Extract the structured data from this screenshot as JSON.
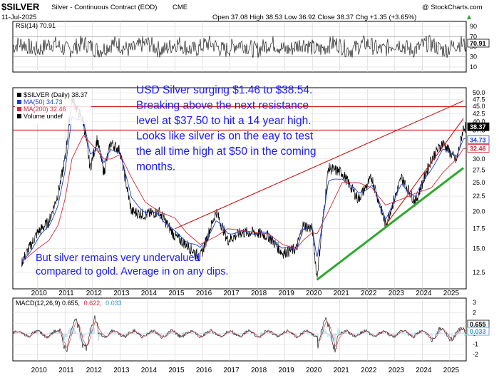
{
  "header": {
    "symbol": "$SILVER",
    "description": "Silver - Continuous Contract (EOD)",
    "exchange": "CME",
    "date": "11-Jul-2025",
    "ohlc": "Open 37.08  High 38.53  Low 36.92  Close 38.37  Chg +1.35 (+3.65%)",
    "ohlc_arrow_color": "#22aa22",
    "watermark": "@ StockCharts.com"
  },
  "colors": {
    "price": "#000000",
    "ma50": "#1a3fd6",
    "ma200": "#d42a3a",
    "resistance": "#cc0000",
    "trend_up": "#2ea82e",
    "annotation": "#1a1aff",
    "rsi": "#000000",
    "macd": "#000000",
    "macd_signal": "#d42a3a",
    "macd_hist": "#3399cc"
  },
  "rsi_panel": {
    "label": "RSI(14) 70.91",
    "badge": "70.91",
    "ticks": [
      "90",
      "70",
      "50",
      "30",
      "10"
    ],
    "tick_values": [
      90,
      70,
      50,
      30,
      10
    ]
  },
  "price_panel": {
    "legend": [
      {
        "text": "$SILVER (Daily) 38.37",
        "color": "#000000"
      },
      {
        "text": "MA(50) 34.73",
        "color": "#1a3fd6"
      },
      {
        "text": "MA(200) 32.46",
        "color": "#d42a3a"
      },
      {
        "text": "Volume undef",
        "color": "#000000"
      }
    ],
    "ticks": [
      "50.0",
      "47.5",
      "45.0",
      "42.5",
      "40.0",
      "37.5",
      "35.0",
      "32.5",
      "30.0",
      "27.5",
      "25.0",
      "22.5",
      "20.0",
      "17.5",
      "15.0",
      "12.5"
    ],
    "tick_values": [
      50,
      47.5,
      45,
      42.5,
      40,
      37.5,
      35,
      32.5,
      30,
      27.5,
      25,
      22.5,
      20,
      17.5,
      15,
      12.5
    ],
    "badges": [
      {
        "text": "38.37",
        "value": 38.37,
        "color": "#000000",
        "bold": true
      },
      {
        "text": "34.73",
        "value": 34.73,
        "color": "#1a3fd6"
      },
      {
        "text": "32.46",
        "value": 32.46,
        "color": "#d42a3a"
      }
    ],
    "annotation_top": [
      "USD Silver surging $1.46 to $38.54.",
      "Breaking above the next resistance",
      "level at $37.50 to hit a 14 year high.",
      "Looks like silver is on the eay to test",
      "the all time high at $50 in the coming",
      "months."
    ],
    "annotation_bottom": [
      "But silver remains very undervalued",
      "compared to gold. Average in on any dips."
    ]
  },
  "macd_panel": {
    "label_main": "MACD(12,26,9) 0.655,",
    "label_signal": "0.622,",
    "label_hist": "0.033",
    "badges": [
      "0.655",
      "0.033"
    ],
    "ticks": [
      "3",
      "2",
      "1",
      "0",
      "-1",
      "-2"
    ],
    "tick_values": [
      3,
      2,
      1,
      0,
      -1,
      -2
    ]
  },
  "x_axis": {
    "years": [
      "2010",
      "2011",
      "2012",
      "2013",
      "2014",
      "2015",
      "2016",
      "2017",
      "2018",
      "2019",
      "2020",
      "2021",
      "2022",
      "2023",
      "2024",
      "2025"
    ]
  },
  "chart_data": {
    "type": "line",
    "title": "Silver - Continuous Contract (EOD)",
    "scale": "log",
    "ylim": [
      11,
      52
    ],
    "x": [
      "2009-06",
      "2010-01",
      "2010-06",
      "2010-10",
      "2011-01",
      "2011-04",
      "2011-09",
      "2011-12",
      "2012-03",
      "2012-06",
      "2012-09",
      "2013-01",
      "2013-06",
      "2013-12",
      "2014-06",
      "2015-01",
      "2015-06",
      "2015-12",
      "2016-07",
      "2016-12",
      "2017-06",
      "2017-12",
      "2018-06",
      "2018-12",
      "2019-06",
      "2019-09",
      "2020-01",
      "2020-03",
      "2020-08",
      "2021-02",
      "2021-09",
      "2022-03",
      "2022-09",
      "2023-04",
      "2023-10",
      "2024-05",
      "2024-10",
      "2025-04",
      "2025-07"
    ],
    "series": [
      {
        "name": "$SILVER (Daily)",
        "values": [
          13.5,
          17,
          18.5,
          23,
          30,
          48,
          40,
          28,
          35,
          27,
          34,
          32,
          20,
          19.5,
          20,
          16.5,
          15.5,
          14,
          20,
          16,
          17,
          17,
          16.5,
          14.5,
          15,
          18,
          17.5,
          12,
          28,
          27,
          22,
          26,
          18,
          26,
          21.5,
          30,
          34,
          29.5,
          38.37
        ]
      },
      {
        "name": "MA(50)",
        "values": [
          13.5,
          16,
          18,
          21,
          27,
          42,
          40,
          31,
          33,
          29,
          32,
          32,
          22,
          20,
          19.5,
          17,
          16,
          15,
          18.5,
          17,
          17,
          17,
          16.8,
          15,
          15,
          17.5,
          17.5,
          14,
          25,
          26,
          23,
          24.5,
          19,
          24.5,
          22.5,
          28,
          32,
          31,
          34.73
        ]
      },
      {
        "name": "MA(200)",
        "values": [
          13.5,
          15,
          16,
          18,
          22,
          30,
          36,
          34,
          32,
          30,
          30,
          31,
          26,
          21.5,
          20,
          19,
          17,
          15.5,
          16.5,
          17.5,
          17.3,
          17,
          16.8,
          15.5,
          15,
          16,
          17,
          16.8,
          20,
          25,
          25,
          24,
          21,
          22,
          23,
          24,
          27,
          30,
          32.46
        ]
      }
    ],
    "horizontal_lines": [
      {
        "value": 44.9
      },
      {
        "value": 37.5
      }
    ],
    "trendlines": [
      {
        "color": "red",
        "from": [
          "2015-01",
          17.5
        ],
        "to": [
          "2025-07",
          47
        ]
      },
      {
        "color": "red",
        "from": [
          "2022-09",
          18
        ],
        "to": [
          "2025-07",
          41
        ]
      },
      {
        "color": "green",
        "from": [
          "2020-03",
          11.8
        ],
        "to": [
          "2025-07",
          28
        ]
      }
    ]
  }
}
